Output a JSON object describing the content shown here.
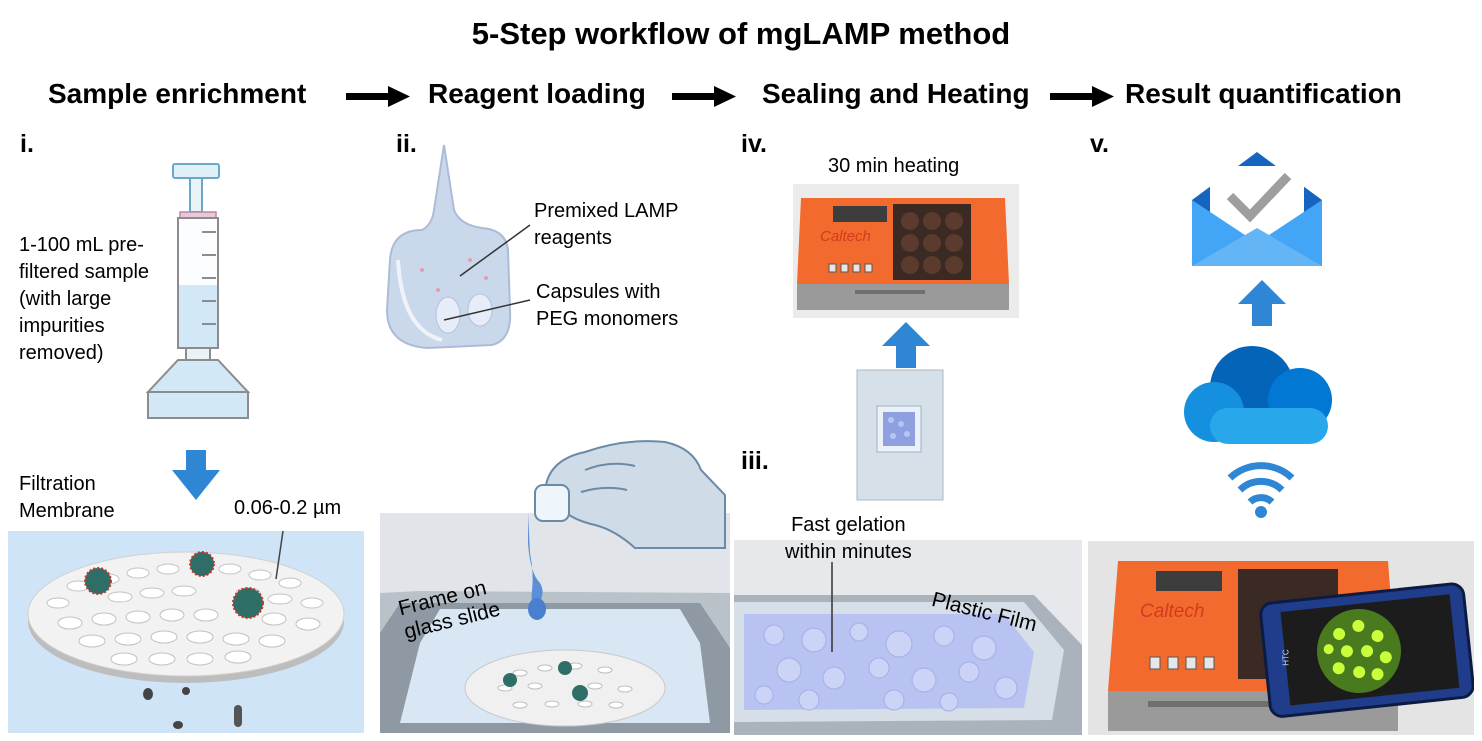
{
  "title": "5-Step workflow of mgLAMP method",
  "steps": [
    {
      "label": "Sample enrichment"
    },
    {
      "label": "Reagent loading"
    },
    {
      "label": "Sealing and Heating"
    },
    {
      "label": "Result quantification"
    }
  ],
  "panels": {
    "i": {
      "numeral": "i.",
      "sample_lines": [
        "1-100 mL pre-",
        "filtered sample",
        "(with large",
        "impurities",
        "removed)"
      ],
      "membrane_lines": [
        "Filtration",
        "Membrane"
      ],
      "pore_size": "0.06-0.2 µm"
    },
    "ii": {
      "numeral": "ii.",
      "reagents_lines": [
        "Premixed LAMP",
        "reagents"
      ],
      "capsules_lines": [
        "Capsules with",
        "PEG monomers"
      ],
      "frame_lines": [
        "Frame on",
        "glass slide"
      ]
    },
    "iii": {
      "numeral": "iii.",
      "gelation_lines": [
        "Fast gelation",
        "within minutes"
      ],
      "film_label": "Plastic Film"
    },
    "iv": {
      "numeral": "iv.",
      "heating_label": "30 min heating",
      "brand": "Caltech"
    },
    "v": {
      "numeral": "v.",
      "brand": "Caltech",
      "phone_brand": "HTC"
    }
  },
  "colors": {
    "arrow_blue": "#2f86d4",
    "heater_orange": "#f26a2e",
    "membrane_bg": "#cfe4f6",
    "gel_blue": "#b9c3f2"
  }
}
